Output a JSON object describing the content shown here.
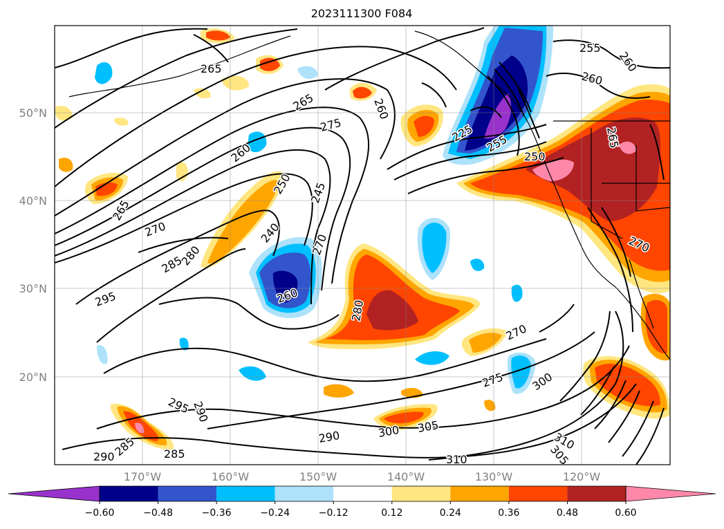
{
  "title": "2023111300 F084",
  "lat_labels": [
    "50°N",
    "40°N",
    "30°N",
    "20°N"
  ],
  "lon_labels": [
    "170°W",
    "160°W",
    "150°W",
    "140°W",
    "130°W",
    "120°W"
  ],
  "colorbar": {
    "ticks": [
      "−0.60",
      "−0.48",
      "−0.36",
      "−0.24",
      "−0.12",
      "0.12",
      "0.24",
      "0.36",
      "0.48",
      "0.60"
    ],
    "colors": [
      "#9932CC",
      "#00008B",
      "#3355CC",
      "#00BFFF",
      "#ADE2FA",
      "#FFFFFF",
      "#FFE680",
      "#FFA500",
      "#FF4500",
      "#B22222",
      "#FF88AA"
    ]
  },
  "contour_labels": [
    "265",
    "265",
    "260",
    "260",
    "255",
    "260",
    "265",
    "270",
    "275",
    "280",
    "285",
    "295",
    "250",
    "245",
    "240",
    "270",
    "260",
    "280",
    "270",
    "275",
    "300",
    "305",
    "310",
    "300",
    "305",
    "310",
    "290",
    "295",
    "290",
    "285",
    "290",
    "285",
    "225",
    "250",
    "255",
    "260",
    "265",
    "270"
  ],
  "chart_data": {
    "type": "map",
    "map_region": "North Pacific",
    "lon_range": [
      "180°W",
      "110°W"
    ],
    "lat_range": [
      "10°N",
      "60°N"
    ],
    "filled_field_levels": [
      -0.6,
      -0.48,
      -0.36,
      -0.24,
      -0.12,
      0.12,
      0.24,
      0.36,
      0.48,
      0.6
    ],
    "contour_values_labeled": [
      225,
      240,
      245,
      250,
      255,
      260,
      265,
      270,
      275,
      280,
      285,
      290,
      295,
      300,
      305,
      310
    ],
    "grid": true
  }
}
